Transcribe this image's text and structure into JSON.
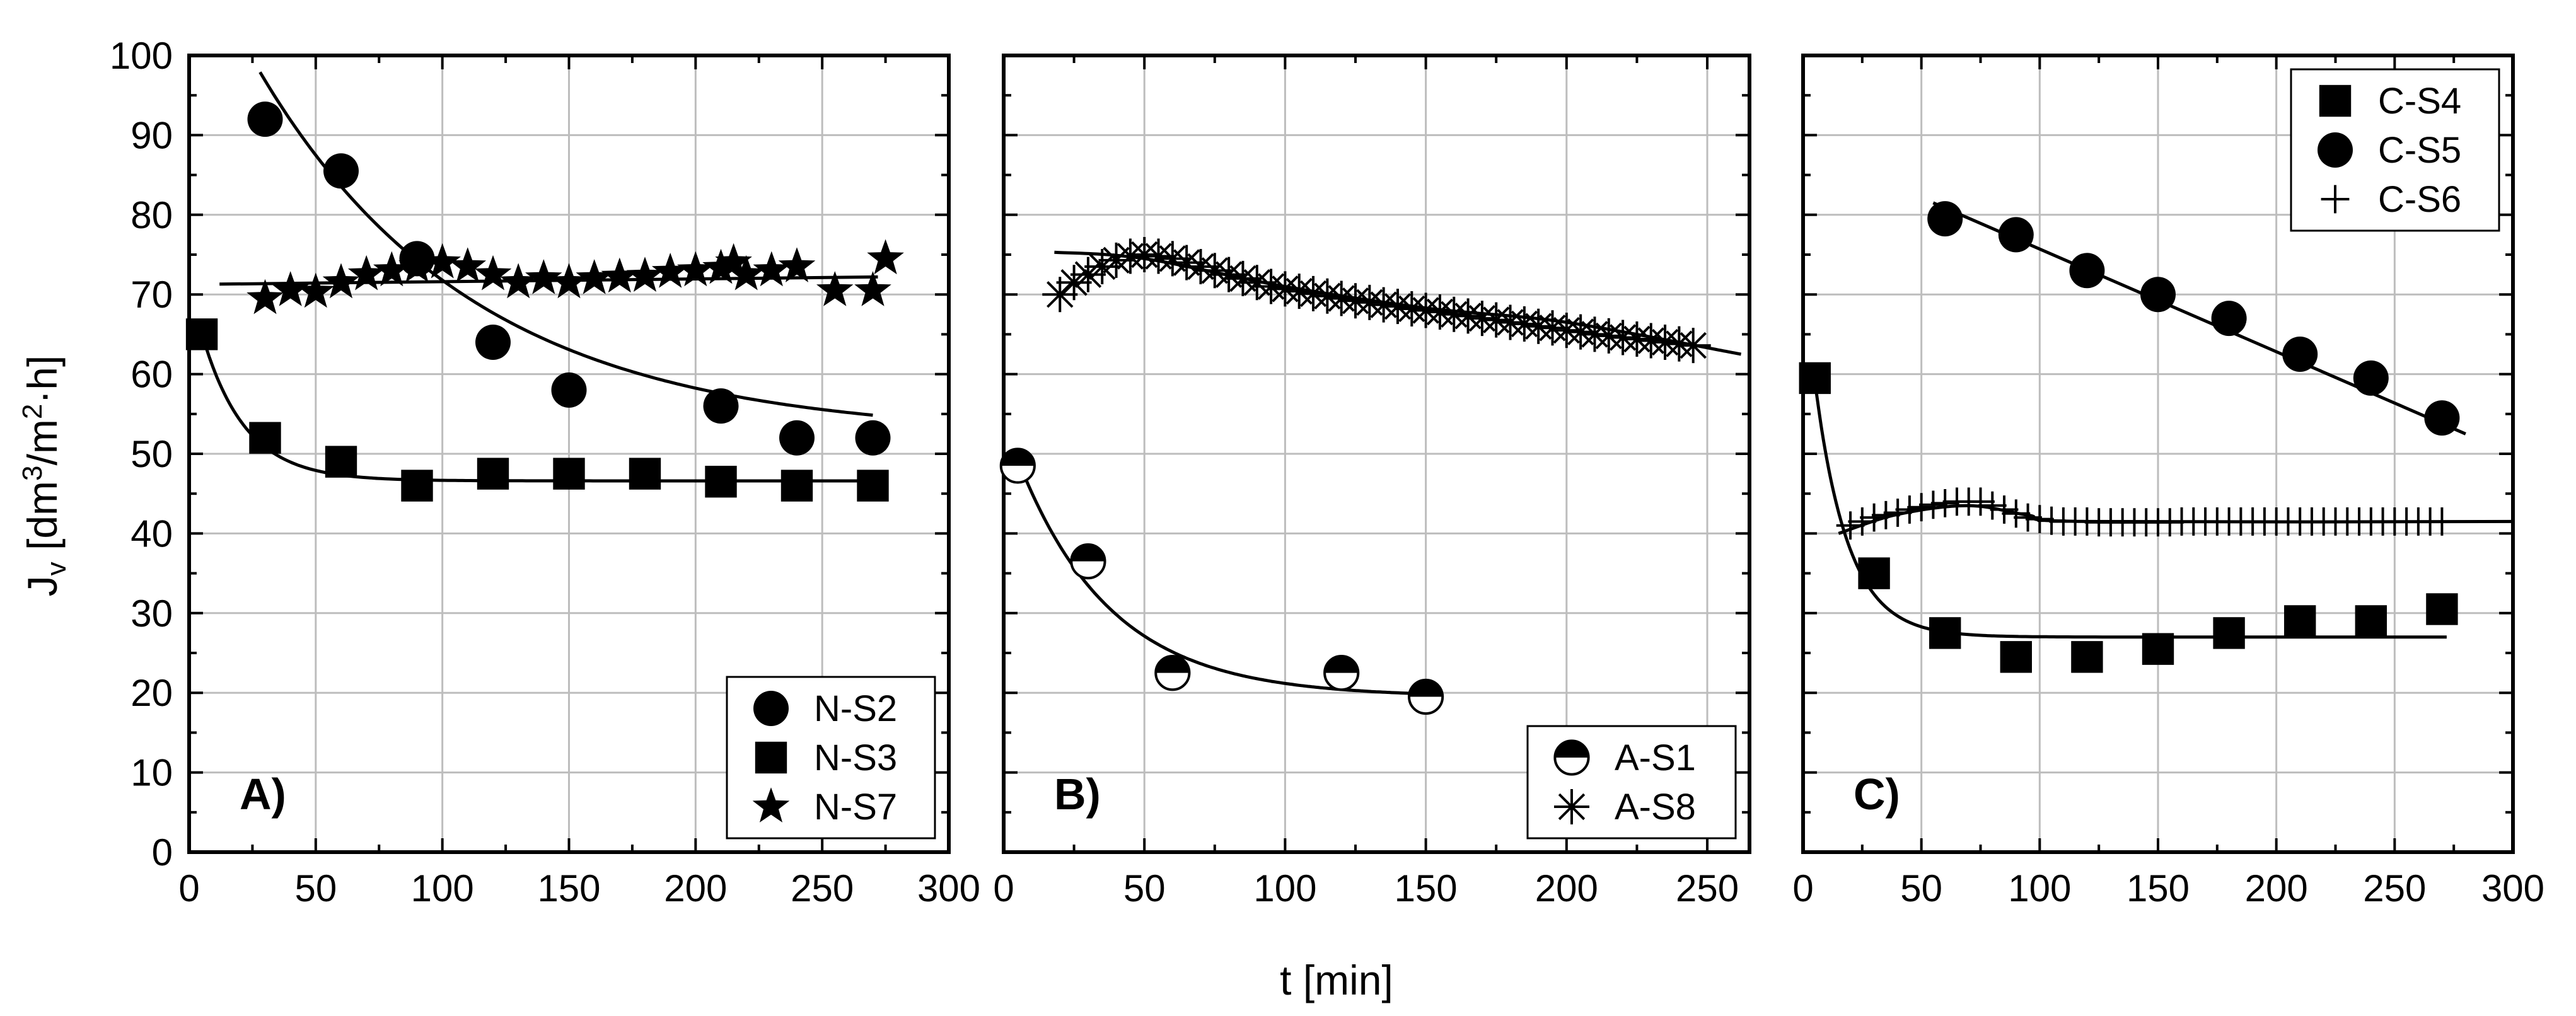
{
  "figure": {
    "ylabel": {
      "main": "J",
      "sub": "v",
      "unit_open": " [dm",
      "sup1": "3",
      "unit_mid": "/m",
      "sup2": "2",
      "unit_close": "·h]"
    },
    "xlabel": "t [min]",
    "ylim": [
      0,
      100
    ],
    "yticks": [
      "0",
      "10",
      "20",
      "30",
      "40",
      "50",
      "60",
      "70",
      "80",
      "90",
      "100"
    ]
  },
  "chart_data": [
    {
      "type": "scatter",
      "panel_label": "A)",
      "xlim": [
        0,
        300
      ],
      "ylim": [
        0,
        100
      ],
      "xticks": [
        "0",
        "50",
        "100",
        "150",
        "200",
        "250",
        "300"
      ],
      "legend_position": "bottom-right",
      "series": [
        {
          "name": "N-S2",
          "marker": "circle",
          "x": [
            30,
            60,
            90,
            120,
            150,
            210,
            240,
            270
          ],
          "y": [
            92,
            85.5,
            74.5,
            64,
            58,
            56,
            52,
            52
          ],
          "fit": {
            "kind": "exp",
            "x0": 28,
            "x1": 270,
            "a": 45.7,
            "b": 52.2,
            "tau": 85
          }
        },
        {
          "name": "N-S3",
          "marker": "square",
          "x": [
            5,
            30,
            60,
            90,
            120,
            150,
            180,
            210,
            240,
            270
          ],
          "y": [
            65,
            52,
            49,
            46,
            47.5,
            47.5,
            47.5,
            46.5,
            46,
            46
          ],
          "fit": {
            "kind": "exp",
            "x0": 5,
            "x1": 270,
            "a": 18.5,
            "b": 46.6,
            "tau": 17
          }
        },
        {
          "name": "N-S7",
          "marker": "star",
          "x": [
            30,
            40,
            50,
            60,
            70,
            80,
            90,
            100,
            110,
            120,
            130,
            140,
            150,
            160,
            170,
            180,
            190,
            200,
            210,
            215,
            220,
            230,
            240,
            255,
            270,
            275
          ],
          "y": [
            69.5,
            70.5,
            70.3,
            71.5,
            72.5,
            73,
            73.5,
            74,
            73.5,
            72.5,
            71.5,
            72,
            71.5,
            72,
            72.2,
            72.3,
            72.8,
            73,
            73.3,
            74,
            72.5,
            73,
            73.5,
            70.5,
            70.5,
            74.5
          ],
          "fit": {
            "kind": "linear",
            "x0": 12,
            "x1": 272,
            "y0": 71.3,
            "y1": 72.2
          }
        }
      ]
    },
    {
      "type": "scatter",
      "panel_label": "B)",
      "xlim": [
        0,
        265
      ],
      "ylim": [
        0,
        100
      ],
      "xticks": [
        "0",
        "50",
        "100",
        "150",
        "200",
        "250"
      ],
      "legend_position": "bottom-right",
      "series": [
        {
          "name": "A-S1",
          "marker": "half-circle",
          "x": [
            5,
            30,
            60,
            120,
            150
          ],
          "y": [
            48.5,
            36.5,
            22.5,
            22.5,
            19.5
          ],
          "fit": {
            "kind": "exp",
            "x0": 5,
            "x1": 150,
            "a": 29.8,
            "b": 19.5,
            "tau": 33
          }
        },
        {
          "name": "A-S8",
          "marker": "asterisk",
          "x": [
            20,
            25,
            30,
            35,
            40,
            45,
            50,
            55,
            60,
            65,
            70,
            75,
            80,
            85,
            90,
            95,
            100,
            105,
            110,
            115,
            120,
            125,
            130,
            135,
            140,
            145,
            150,
            155,
            160,
            165,
            170,
            175,
            180,
            185,
            190,
            195,
            200,
            205,
            210,
            215,
            220,
            225,
            230,
            235,
            240,
            245
          ],
          "y": [
            70,
            71.5,
            72.5,
            73.5,
            74.3,
            74.8,
            75,
            74.8,
            74.5,
            74,
            73.5,
            73,
            72.5,
            72,
            71.5,
            71,
            70.7,
            70.4,
            70.1,
            69.8,
            69.5,
            69.2,
            69,
            68.7,
            68.5,
            68.2,
            68,
            67.8,
            67.5,
            67.3,
            67,
            66.8,
            66.5,
            66.3,
            66,
            65.8,
            65.5,
            65.3,
            65,
            64.8,
            64.6,
            64.4,
            64.2,
            64,
            63.8,
            63.6
          ],
          "fit": {
            "kind": "poly",
            "x0": 18,
            "x1": 262,
            "points": [
              [
                18,
                75.3
              ],
              [
                50,
                74.5
              ],
              [
                100,
                71
              ],
              [
                150,
                68.3
              ],
              [
                200,
                66.5
              ],
              [
                262,
                62.5
              ]
            ]
          }
        }
      ]
    },
    {
      "type": "scatter",
      "panel_label": "C)",
      "xlim": [
        0,
        300
      ],
      "ylim": [
        0,
        100
      ],
      "xticks": [
        "0",
        "50",
        "100",
        "150",
        "200",
        "250",
        "300"
      ],
      "legend_position": "top-right",
      "series": [
        {
          "name": "C-S4",
          "marker": "square",
          "x": [
            5,
            30,
            60,
            90,
            120,
            150,
            180,
            210,
            240,
            270
          ],
          "y": [
            59.5,
            35,
            27.5,
            24.5,
            24.5,
            25.5,
            27.5,
            29,
            29,
            30.5
          ],
          "fit": {
            "kind": "exp",
            "x0": 5,
            "x1": 272,
            "a": 32,
            "b": 27,
            "tau": 14
          }
        },
        {
          "name": "C-S5",
          "marker": "circle",
          "x": [
            60,
            90,
            120,
            150,
            180,
            210,
            240,
            270
          ],
          "y": [
            79.5,
            77.5,
            73,
            70,
            67,
            62.5,
            59.5,
            54.5
          ],
          "fit": {
            "kind": "linear",
            "x0": 55,
            "x1": 280,
            "y0": 81.5,
            "y1": 52.5
          }
        },
        {
          "name": "C-S6",
          "marker": "plus",
          "x": [
            20,
            25,
            30,
            35,
            40,
            45,
            50,
            55,
            60,
            65,
            70,
            75,
            80,
            85,
            90,
            95,
            100,
            105,
            110,
            115,
            120,
            125,
            130,
            135,
            140,
            145,
            150,
            155,
            160,
            165,
            170,
            175,
            180,
            185,
            190,
            195,
            200,
            205,
            210,
            215,
            220,
            225,
            230,
            235,
            240,
            245,
            250,
            255,
            260,
            265,
            270
          ],
          "y": [
            41,
            41.5,
            42,
            42.3,
            42.6,
            43,
            43.3,
            43.6,
            43.8,
            44,
            44,
            44,
            43.5,
            43,
            42.5,
            42,
            41.8,
            41.6,
            41.5,
            41.5,
            41.5,
            41.4,
            41.4,
            41.4,
            41.4,
            41.4,
            41.4,
            41.4,
            41.5,
            41.5,
            41.5,
            41.5,
            41.5,
            41.5,
            41.5,
            41.5,
            41.5,
            41.5,
            41.5,
            41.5,
            41.5,
            41.5,
            41.5,
            41.5,
            41.5,
            41.5,
            41.5,
            41.5,
            41.5,
            41.5,
            41.5
          ],
          "fit": {
            "kind": "poly",
            "x0": 15,
            "x1": 300,
            "points": [
              [
                15,
                40
              ],
              [
                40,
                42.4
              ],
              [
                70,
                43.5
              ],
              [
                95,
                42.3
              ],
              [
                120,
                41.5
              ],
              [
                300,
                41.5
              ]
            ]
          }
        }
      ]
    }
  ]
}
